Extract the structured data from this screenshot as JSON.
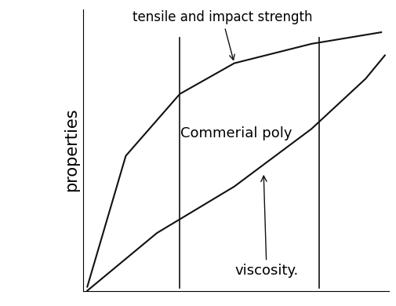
{
  "chart_data": {
    "type": "line",
    "y_label": "properties",
    "annotations": [
      "tensile and impact strength",
      "Commerial poly",
      "viscosity."
    ],
    "series": [
      {
        "name": "tensile and impact strength",
        "color": "#111111",
        "x": [
          0.13,
          1.39,
          3.16,
          4.94,
          7.47,
          9.75
        ],
        "values": [
          0.14,
          4.79,
          6.99,
          8.08,
          8.77,
          9.18
        ]
      },
      {
        "name": "viscosity.",
        "color": "#111111",
        "x": [
          0.13,
          2.41,
          4.94,
          7.47,
          9.24,
          9.87
        ],
        "values": [
          0.0,
          2.05,
          3.7,
          5.75,
          7.53,
          8.36
        ]
      }
    ],
    "vlines": [
      3.16,
      7.72
    ],
    "xlim": [
      0,
      10
    ],
    "ylim": [
      0,
      10
    ],
    "tick_labels": false,
    "grid": false
  }
}
